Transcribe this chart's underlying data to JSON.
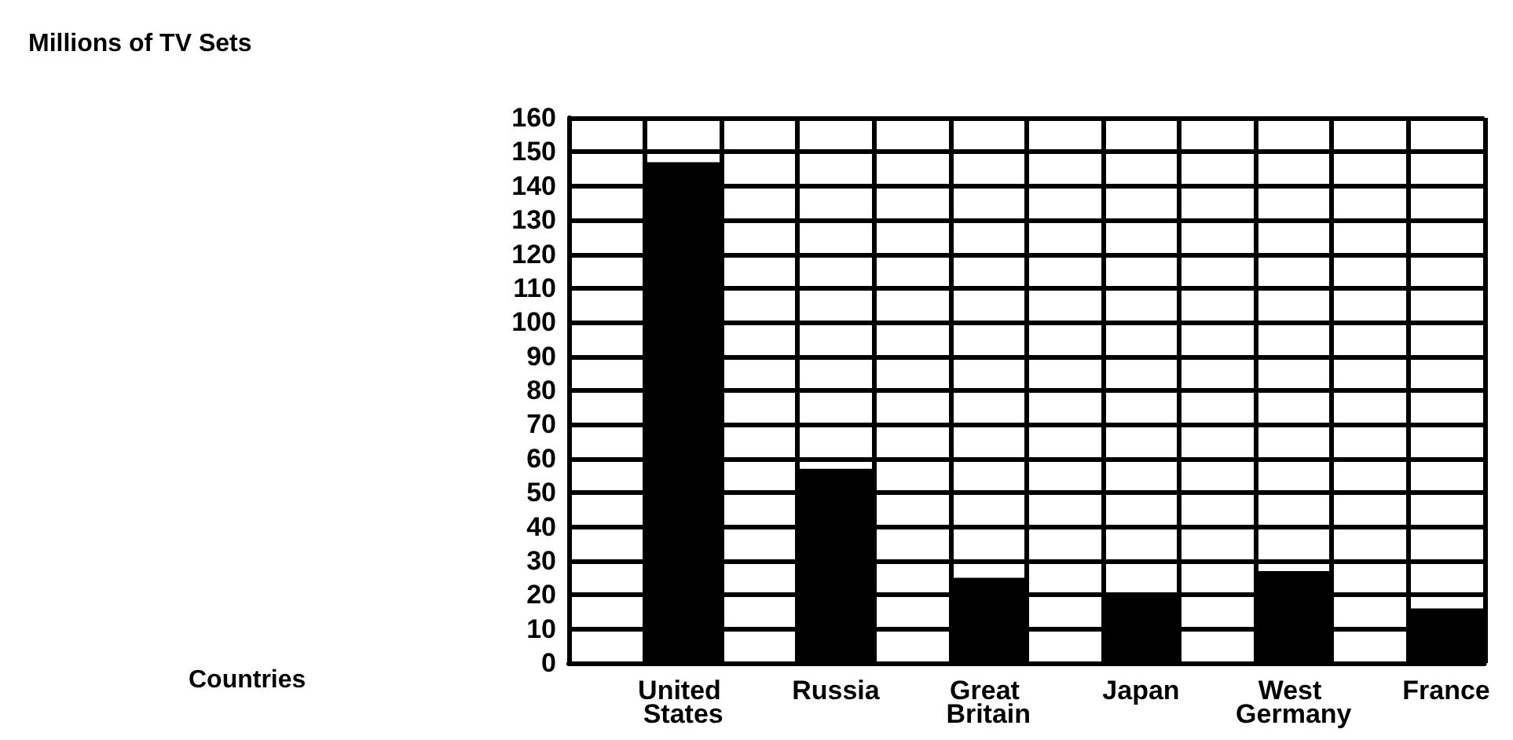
{
  "chart_data": {
    "type": "bar",
    "annotations": [
      "Millions of TV Sets",
      "Countries"
    ],
    "categories": [
      "United States",
      "Russia",
      "Great Britain",
      "Japan",
      "West Germany",
      "France"
    ],
    "values": [
      147,
      57,
      25,
      20,
      27,
      16
    ],
    "color": "#000000",
    "ylim": [
      0,
      160
    ],
    "yticks": [
      0,
      10,
      20,
      30,
      40,
      50,
      60,
      70,
      80,
      90,
      100,
      110,
      120,
      130,
      140,
      150,
      160
    ],
    "grid": true
  }
}
